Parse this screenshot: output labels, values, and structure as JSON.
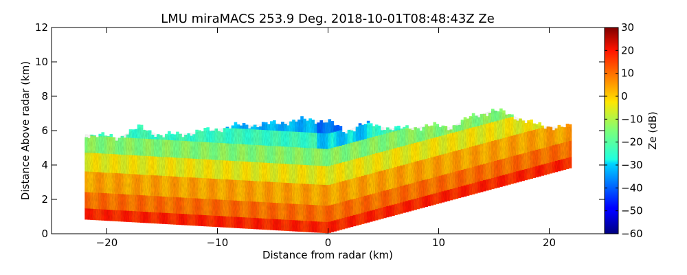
{
  "chart_data": {
    "type": "heatmap",
    "title": "LMU miraMACS 253.9 Deg. 2018-10-01T08:48:43Z  Ze",
    "xlabel": "Distance from radar (km)",
    "ylabel": "Distance Above radar  (km)",
    "xlim": [
      -25,
      25
    ],
    "ylim": [
      0,
      12
    ],
    "xticks": [
      -20,
      -10,
      0,
      10,
      20
    ],
    "xtick_labels": [
      "−20",
      "−10",
      "0",
      "10",
      "20"
    ],
    "yticks": [
      0,
      2,
      4,
      6,
      8,
      10,
      12
    ],
    "ytick_labels": [
      "0",
      "2",
      "4",
      "6",
      "8",
      "10",
      "12"
    ],
    "colorbar": {
      "label": "Ze (dB)",
      "range": [
        -60,
        30
      ],
      "ticks": [
        30,
        20,
        10,
        0,
        -10,
        -20,
        -30,
        -40,
        -50,
        -60
      ],
      "tick_labels": [
        "30",
        "20",
        "10",
        "0",
        "−10",
        "−20",
        "−30",
        "−40",
        "−50",
        "−60"
      ],
      "colormap": "jet"
    },
    "echo_region": {
      "lower_boundary": [
        [
          -22,
          0.85
        ],
        [
          0,
          0.05
        ],
        [
          22,
          3.85
        ]
      ],
      "echo_top": [
        [
          -22,
          5.8
        ],
        [
          -19,
          5.6
        ],
        [
          -17,
          6.2
        ],
        [
          -15,
          5.7
        ],
        [
          -12,
          5.9
        ],
        [
          -10,
          6.1
        ],
        [
          -8,
          6.3
        ],
        [
          -5,
          6.4
        ],
        [
          -3,
          6.6
        ],
        [
          0,
          6.6
        ],
        [
          1.5,
          5.9
        ],
        [
          3,
          6.4
        ],
        [
          5,
          6.2
        ],
        [
          7,
          6.1
        ],
        [
          9,
          6.3
        ],
        [
          11,
          6.2
        ],
        [
          13,
          6.8
        ],
        [
          15,
          7.2
        ],
        [
          17,
          6.8
        ],
        [
          19,
          6.3
        ],
        [
          21.5,
          6.2
        ]
      ],
      "reflectivity_layers": [
        {
          "height_above_ground_km": 0.3,
          "ze_dbz": 18
        },
        {
          "height_above_ground_km": 1.0,
          "ze_dbz": 10
        },
        {
          "height_above_ground_km": 2.2,
          "ze_dbz": 4
        },
        {
          "height_above_ground_km": 3.4,
          "ze_dbz": -4
        },
        {
          "height_above_ground_km": 4.4,
          "ze_dbz": -14
        },
        {
          "height_above_ground_km": 5.4,
          "ze_dbz": -24
        },
        {
          "height_above_ground_km": 6.2,
          "ze_dbz": -32
        }
      ]
    }
  }
}
